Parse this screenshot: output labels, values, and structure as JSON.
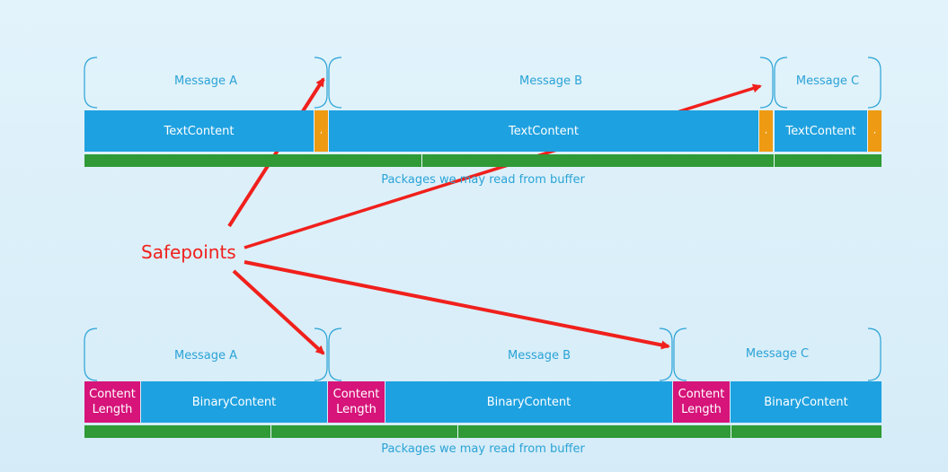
{
  "top": {
    "messages": [
      "Message A",
      "Message B",
      "Message C"
    ],
    "content_label": "TextContent",
    "delimiter": ",",
    "footer": "Packages we may read from buffer"
  },
  "bottom": {
    "messages": [
      "Message A",
      "Message B",
      "Message C"
    ],
    "length_label": "Content\nLength",
    "content_label": "BinaryContent",
    "footer": "Packages we may read from buffer"
  },
  "annotation": {
    "label": "Safepoints",
    "color": "#f0201c"
  },
  "colors": {
    "content": "#1ea1e0",
    "delimiter": "#ee9a12",
    "length_header": "#d6147a",
    "packages": "#2f9a36",
    "label": "#2aa3d6"
  }
}
